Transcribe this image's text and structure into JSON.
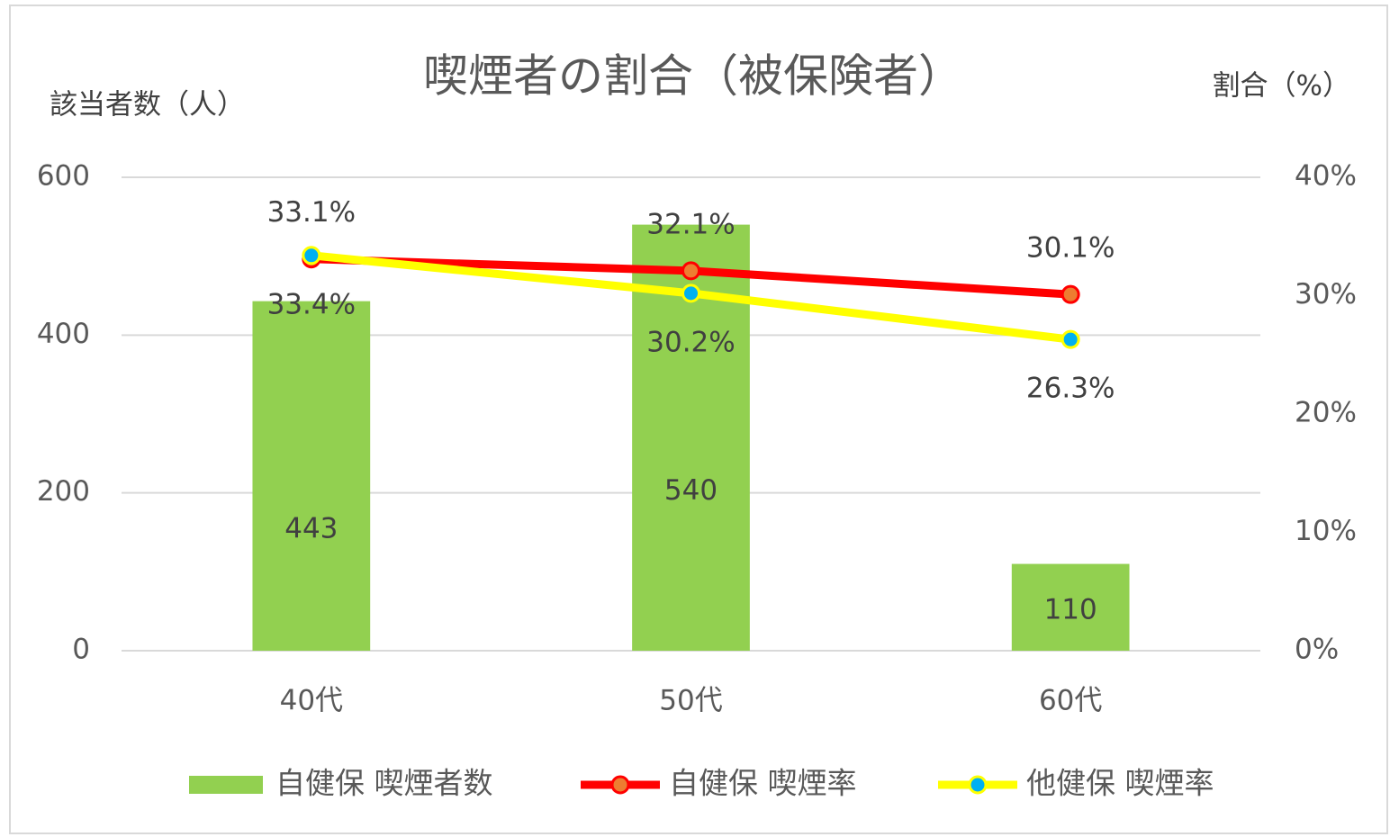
{
  "chart_data": {
    "type": "bar",
    "title": "喫煙者の割合（被保険者）",
    "y_label": "該当者数（人）",
    "y2_label": "割合（%）",
    "categories": [
      "40代",
      "50代",
      "60代"
    ],
    "ylim": [
      0,
      600
    ],
    "yticks": [
      0,
      200,
      400,
      600
    ],
    "y2lim": [
      0,
      40
    ],
    "y2ticks": [
      {
        "value": 0,
        "label": "0%"
      },
      {
        "value": 10,
        "label": "10%"
      },
      {
        "value": 20,
        "label": "20%"
      },
      {
        "value": 30,
        "label": "30%"
      },
      {
        "value": 40,
        "label": "40%"
      }
    ],
    "grid": true,
    "legend": "bottom",
    "series": [
      {
        "name": "自健保 喫煙者数",
        "type": "bar",
        "color": "#92d050",
        "values": [
          443,
          540,
          110
        ]
      },
      {
        "name": "自健保 喫煙率",
        "type": "line",
        "axis": "y2",
        "color": "#ff0000",
        "marker_color": "#ed7d31",
        "values": [
          33.1,
          32.1,
          30.1
        ],
        "value_labels": [
          "33.1%",
          "32.1%",
          "30.1%"
        ]
      },
      {
        "name": "他健保 喫煙率",
        "type": "line",
        "axis": "y2",
        "color": "#ffff00",
        "marker_color": "#00b0f0",
        "values": [
          33.4,
          30.2,
          26.3
        ],
        "value_labels": [
          "33.4%",
          "30.2%",
          "26.3%"
        ]
      }
    ]
  }
}
